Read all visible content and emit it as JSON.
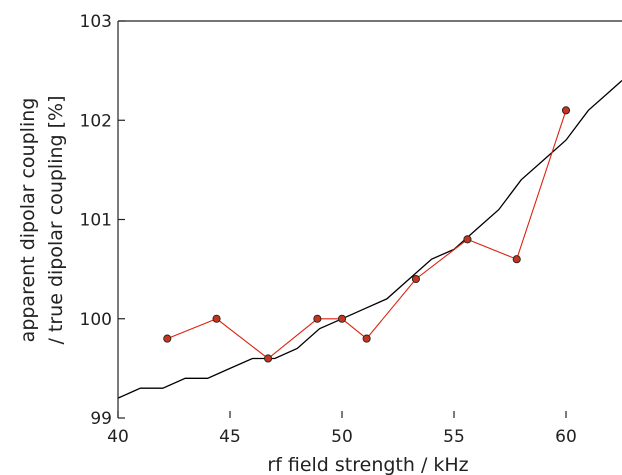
{
  "chart_data": {
    "type": "line",
    "xlabel": "rf field strength / kHz",
    "ylabel_lines": [
      "apparent dipolar coupling",
      "/ true dipolar coupling [%]"
    ],
    "xlim": [
      40,
      62.5
    ],
    "ylim": [
      99,
      103
    ],
    "xticks": [
      40,
      45,
      50,
      55,
      60
    ],
    "yticks": [
      99,
      100,
      101,
      102,
      103
    ],
    "grid": false,
    "series": [
      {
        "role": "simulation",
        "color": "#000000",
        "marker": "none",
        "x": [
          40,
          41,
          42,
          43,
          44,
          45,
          46,
          47,
          48,
          49,
          50,
          51,
          52,
          53,
          54,
          55,
          56,
          57,
          58,
          59,
          60,
          61,
          62,
          62.5
        ],
        "y": [
          99.2,
          99.3,
          99.3,
          99.4,
          99.4,
          99.5,
          99.6,
          99.6,
          99.7,
          99.9,
          100.0,
          100.1,
          100.2,
          100.4,
          100.6,
          100.7,
          100.9,
          101.1,
          101.4,
          101.6,
          101.8,
          102.1,
          102.3,
          102.4
        ]
      },
      {
        "role": "experiment",
        "color": "#dd2211",
        "marker_fill": "#c43520",
        "marker": "circle",
        "x": [
          42.2,
          44.4,
          46.7,
          48.9,
          50.0,
          51.1,
          53.3,
          55.6,
          57.8,
          60.0
        ],
        "y": [
          99.8,
          100.0,
          99.6,
          100.0,
          100.0,
          99.8,
          100.4,
          100.8,
          100.6,
          102.1
        ]
      }
    ]
  }
}
